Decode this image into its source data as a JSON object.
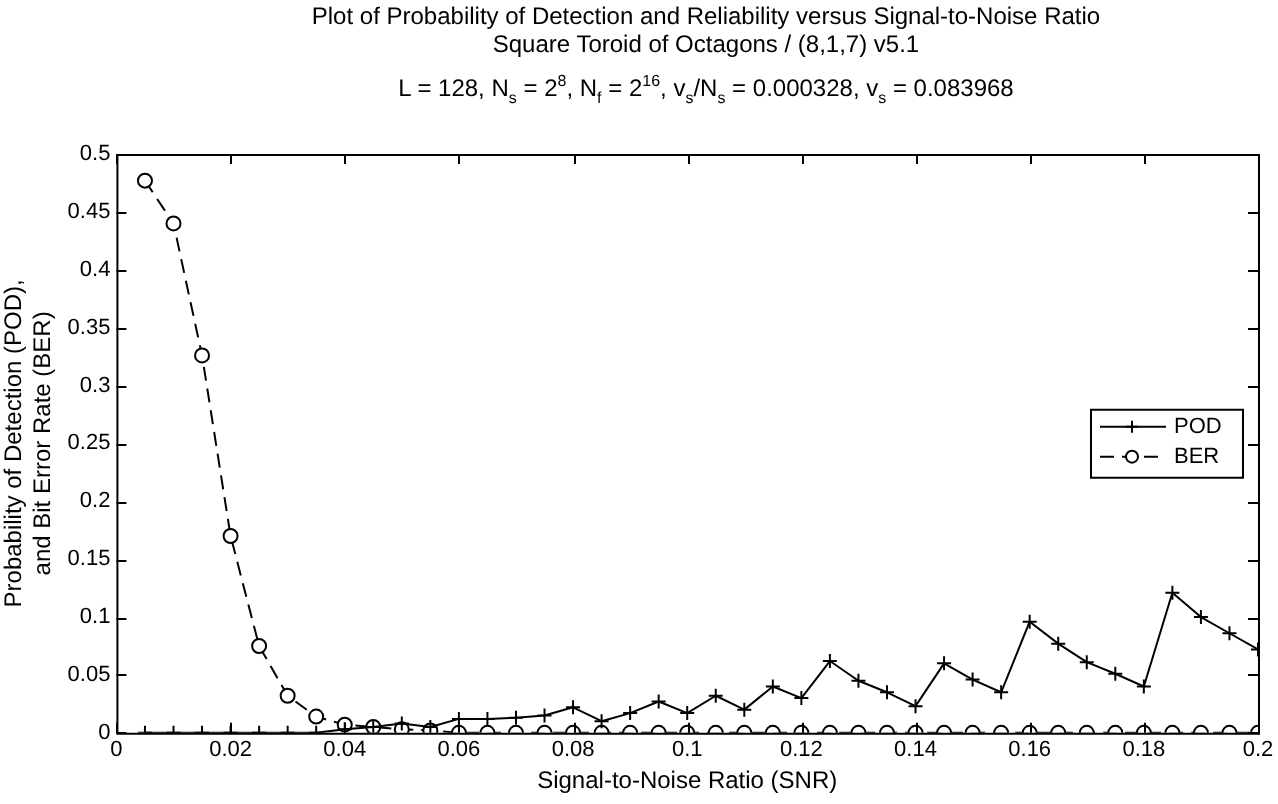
{
  "chart_data": {
    "type": "line",
    "title": "Plot of Probability of Detection and Reliability versus Signal-to-Noise Ratio\nSquare Toroid of Octagons / (8,1,7) v5.1",
    "subtitle": "L = 128, N$_{s}$ = 2$^{8}$, N$_{f}$ = 2$^{16}$, v$_{s}$/N$_{s}$ = 0.000328, v$_{s}$ = 0.083968",
    "xlabel": "Signal-to-Noise Ratio (SNR)",
    "ylabel": "Probability of Detection (POD),\nand Bit Error Rate (BER)",
    "x": [
      0.005,
      0.01,
      0.015,
      0.02,
      0.025,
      0.03,
      0.035,
      0.04,
      0.045,
      0.05,
      0.055,
      0.06,
      0.065,
      0.07,
      0.075,
      0.08,
      0.085,
      0.09,
      0.095,
      0.1,
      0.105,
      0.11,
      0.115,
      0.12,
      0.125,
      0.13,
      0.135,
      0.14,
      0.145,
      0.15,
      0.155,
      0.16,
      0.165,
      0.17,
      0.175,
      0.18,
      0.185,
      0.19,
      0.195,
      0.2
    ],
    "series": [
      {
        "name": "POD",
        "color": "#000000",
        "marker": "cross",
        "line_style": "solid",
        "values": [
          0,
          0,
          0,
          0,
          0,
          0,
          0,
          0.003,
          0.005,
          0.008,
          0.005,
          0.012,
          0.012,
          0.013,
          0.015,
          0.022,
          0.01,
          0.017,
          0.027,
          0.017,
          0.032,
          0.02,
          0.04,
          0.03,
          0.062,
          0.045,
          0.035,
          0.023,
          0.06,
          0.046,
          0.035,
          0.096,
          0.077,
          0.061,
          0.051,
          0.04,
          0.121,
          0.1,
          0.086,
          0.072
        ]
      },
      {
        "name": "BER",
        "color": "#000000",
        "marker": "circle",
        "line_style": "dashed",
        "values": [
          0.477,
          0.44,
          0.326,
          0.17,
          0.075,
          0.032,
          0.014,
          0.007,
          0.005,
          0.003,
          0.002,
          0,
          0,
          0,
          0,
          0,
          0,
          0,
          0,
          0,
          0,
          0,
          0,
          0,
          0,
          0,
          0,
          0,
          0,
          0,
          0,
          0,
          0,
          0,
          0,
          0,
          0,
          0,
          0,
          0
        ]
      }
    ],
    "xlim": [
      0,
      0.2
    ],
    "xticks": [
      0,
      0.02,
      0.04,
      0.06,
      0.08,
      0.1,
      0.12,
      0.14,
      0.16,
      0.18,
      0.2
    ],
    "ylim": [
      0,
      0.5
    ],
    "yticks": [
      0,
      0.05,
      0.1,
      0.15,
      0.2,
      0.25,
      0.3,
      0.35,
      0.4,
      0.45,
      0.5
    ],
    "grid": false,
    "legend": "right"
  }
}
